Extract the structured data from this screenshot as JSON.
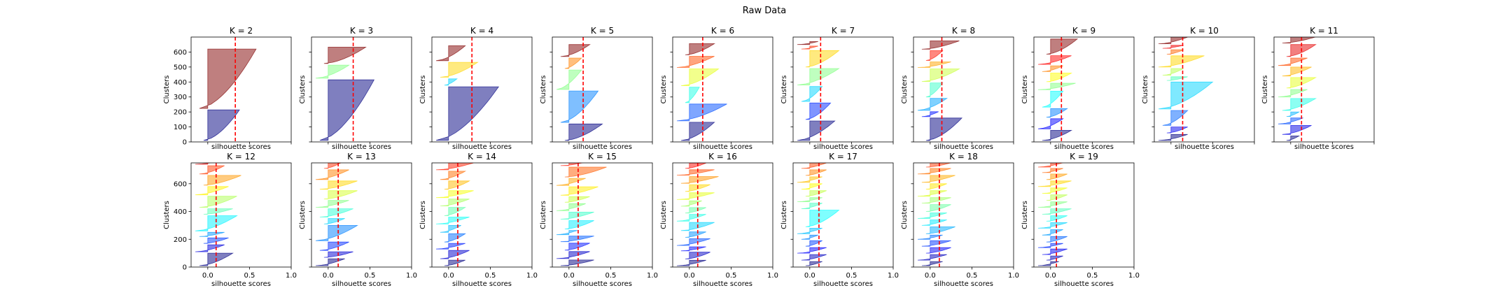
{
  "figure": {
    "suptitle": "Raw Data"
  },
  "chart_data": {
    "type": "silhouette-grid",
    "title": "Raw Data",
    "xlabel": "silhouette scores",
    "ylabel": "Clusters",
    "xlim": [
      -0.2,
      1.0
    ],
    "xticks": [
      "0.0",
      "0.5",
      "1.0"
    ],
    "row_ylims": [
      [
        0,
        700
      ],
      [
        0,
        750
      ]
    ],
    "row_yticks": [
      [
        "0",
        "100",
        "200",
        "300",
        "400",
        "500",
        "600"
      ],
      [
        "0",
        "200",
        "400",
        "600"
      ]
    ],
    "panels": [
      {
        "title": "K = 2",
        "k": 2,
        "avg_score": 0.33,
        "n_samples": 600,
        "sizes": [
          200,
          390
        ],
        "peaks": [
          0.38,
          0.58
        ]
      },
      {
        "title": "K = 3",
        "k": 3,
        "avg_score": 0.3,
        "n_samples": 600,
        "sizes": [
          370,
          80,
          100
        ],
        "peaks": [
          0.55,
          0.25,
          0.45
        ]
      },
      {
        "title": "K = 4",
        "k": 4,
        "avg_score": 0.28,
        "n_samples": 600,
        "sizes": [
          340,
          40,
          95,
          95
        ],
        "peaks": [
          0.6,
          0.1,
          0.35,
          0.2
        ]
      },
      {
        "title": "K = 5",
        "k": 5,
        "avg_score": 0.17,
        "n_samples": 600,
        "sizes": [
          110,
          210,
          130,
          70,
          80
        ],
        "peaks": [
          0.4,
          0.35,
          0.15,
          0.15,
          0.25
        ]
      },
      {
        "title": "K = 6",
        "k": 6,
        "avg_score": 0.16,
        "n_samples": 600,
        "sizes": [
          130,
          120,
          110,
          120,
          80,
          80
        ],
        "peaks": [
          0.3,
          0.45,
          0.12,
          0.35,
          0.3,
          0.3
        ]
      },
      {
        "title": "K = 7",
        "k": 7,
        "avg_score": 0.13,
        "n_samples": 600,
        "sizes": [
          130,
          110,
          100,
          110,
          110,
          20,
          20
        ],
        "peaks": [
          0.3,
          0.25,
          0.15,
          0.35,
          0.35,
          0.1,
          0.1
        ]
      },
      {
        "title": "K = 8",
        "k": 8,
        "avg_score": 0.14,
        "n_samples": 600,
        "sizes": [
          160,
          35,
          85,
          100,
          90,
          40,
          70,
          60
        ],
        "peaks": [
          0.38,
          0.1,
          0.2,
          0.15,
          0.35,
          0.25,
          0.15,
          0.35
        ]
      },
      {
        "title": "K = 9",
        "k": 9,
        "avg_score": 0.13,
        "n_samples": 600,
        "sizes": [
          70,
          70,
          60,
          110,
          45,
          60,
          40,
          60,
          105
        ],
        "peaks": [
          0.25,
          0.15,
          0.2,
          0.15,
          0.3,
          0.25,
          0.15,
          0.25,
          0.32
        ]
      },
      {
        "title": "K = 10",
        "k": 10,
        "avg_score": 0.14,
        "n_samples": 600,
        "sizes": [
          40,
          40,
          100,
          180,
          25,
          45,
          75,
          30,
          20,
          45
        ],
        "peaks": [
          0.2,
          0.2,
          0.2,
          0.5,
          0.2,
          0.15,
          0.4,
          0.15,
          0.15,
          0.2
        ]
      },
      {
        "title": "K = 11",
        "k": 11,
        "avg_score": 0.13,
        "n_samples": 620,
        "sizes": [
          30,
          60,
          40,
          30,
          80,
          50,
          70,
          60,
          50,
          80,
          70
        ],
        "peaks": [
          0.1,
          0.25,
          0.15,
          0.1,
          0.3,
          0.2,
          0.3,
          0.25,
          0.2,
          0.3,
          0.45
        ]
      },
      {
        "title": "K = 12",
        "k": 12,
        "avg_score": 0.1,
        "n_samples": 720,
        "sizes": [
          90,
          50,
          40,
          30,
          110,
          40,
          80,
          60,
          70,
          60,
          40,
          50
        ],
        "peaks": [
          0.3,
          0.2,
          0.25,
          0.2,
          0.35,
          0.3,
          0.35,
          0.25,
          0.4,
          0.2,
          0.25,
          0.2
        ]
      },
      {
        "title": "K = 13",
        "k": 13,
        "avg_score": 0.12,
        "n_samples": 720,
        "sizes": [
          50,
          40,
          60,
          110,
          40,
          60,
          50,
          60,
          60,
          70,
          40,
          40,
          40
        ],
        "peaks": [
          0.2,
          0.3,
          0.25,
          0.35,
          0.2,
          0.3,
          0.25,
          0.35,
          0.35,
          0.25,
          0.15,
          0.2,
          0.2
        ]
      },
      {
        "title": "K = 14",
        "k": 14,
        "avg_score": 0.11,
        "n_samples": 720,
        "sizes": [
          40,
          60,
          40,
          60,
          50,
          50,
          60,
          50,
          50,
          60,
          60,
          50,
          50,
          40
        ],
        "peaks": [
          0.2,
          0.25,
          0.2,
          0.2,
          0.15,
          0.25,
          0.2,
          0.25,
          0.3,
          0.25,
          0.2,
          0.3,
          0.2,
          0.2
        ]
      },
      {
        "title": "K = 15",
        "k": 15,
        "avg_score": 0.11,
        "n_samples": 720,
        "sizes": [
          40,
          50,
          50,
          40,
          30,
          60,
          50,
          50,
          40,
          60,
          50,
          70,
          40,
          40,
          40
        ],
        "peaks": [
          0.3,
          0.25,
          0.25,
          0.3,
          0.1,
          0.3,
          0.3,
          0.2,
          0.25,
          0.35,
          0.2,
          0.45,
          0.3,
          0.3,
          0.25
        ]
      },
      {
        "title": "K = 16",
        "k": 16,
        "avg_score": 0.1,
        "n_samples": 720,
        "sizes": [
          40,
          50,
          30,
          50,
          40,
          60,
          50,
          40,
          40,
          50,
          50,
          50,
          40,
          40,
          50,
          60
        ],
        "peaks": [
          0.2,
          0.25,
          0.2,
          0.25,
          0.2,
          0.3,
          0.2,
          0.2,
          0.15,
          0.3,
          0.25,
          0.35,
          0.3,
          0.2,
          0.25,
          0.2
        ]
      },
      {
        "title": "K = 17",
        "k": 17,
        "avg_score": 0.11,
        "n_samples": 720,
        "sizes": [
          30,
          40,
          40,
          40,
          30,
          40,
          120,
          40,
          30,
          40,
          40,
          40,
          40,
          40,
          40,
          30,
          40
        ],
        "peaks": [
          0.15,
          0.2,
          0.2,
          0.15,
          0.1,
          0.15,
          0.35,
          0.15,
          0.15,
          0.2,
          0.15,
          0.15,
          0.2,
          0.2,
          0.2,
          0.15,
          0.2
        ]
      },
      {
        "title": "K = 18",
        "k": 18,
        "avg_score": 0.11,
        "n_samples": 720,
        "sizes": [
          30,
          40,
          40,
          40,
          30,
          50,
          40,
          40,
          50,
          40,
          40,
          40,
          50,
          40,
          40,
          30,
          40,
          40
        ],
        "peaks": [
          0.15,
          0.2,
          0.25,
          0.25,
          0.15,
          0.3,
          0.2,
          0.2,
          0.25,
          0.25,
          0.2,
          0.2,
          0.3,
          0.25,
          0.3,
          0.15,
          0.2,
          0.2
        ]
      },
      {
        "title": "K = 19",
        "k": 19,
        "avg_score": 0.07,
        "n_samples": 720,
        "sizes": [
          30,
          30,
          40,
          30,
          40,
          40,
          40,
          40,
          40,
          40,
          40,
          40,
          40,
          40,
          30,
          40,
          40,
          40,
          40
        ],
        "peaks": [
          0.1,
          0.15,
          0.2,
          0.15,
          0.2,
          0.15,
          0.2,
          0.2,
          0.25,
          0.2,
          0.2,
          0.2,
          0.25,
          0.2,
          0.15,
          0.2,
          0.3,
          0.25,
          0.2
        ]
      }
    ]
  }
}
